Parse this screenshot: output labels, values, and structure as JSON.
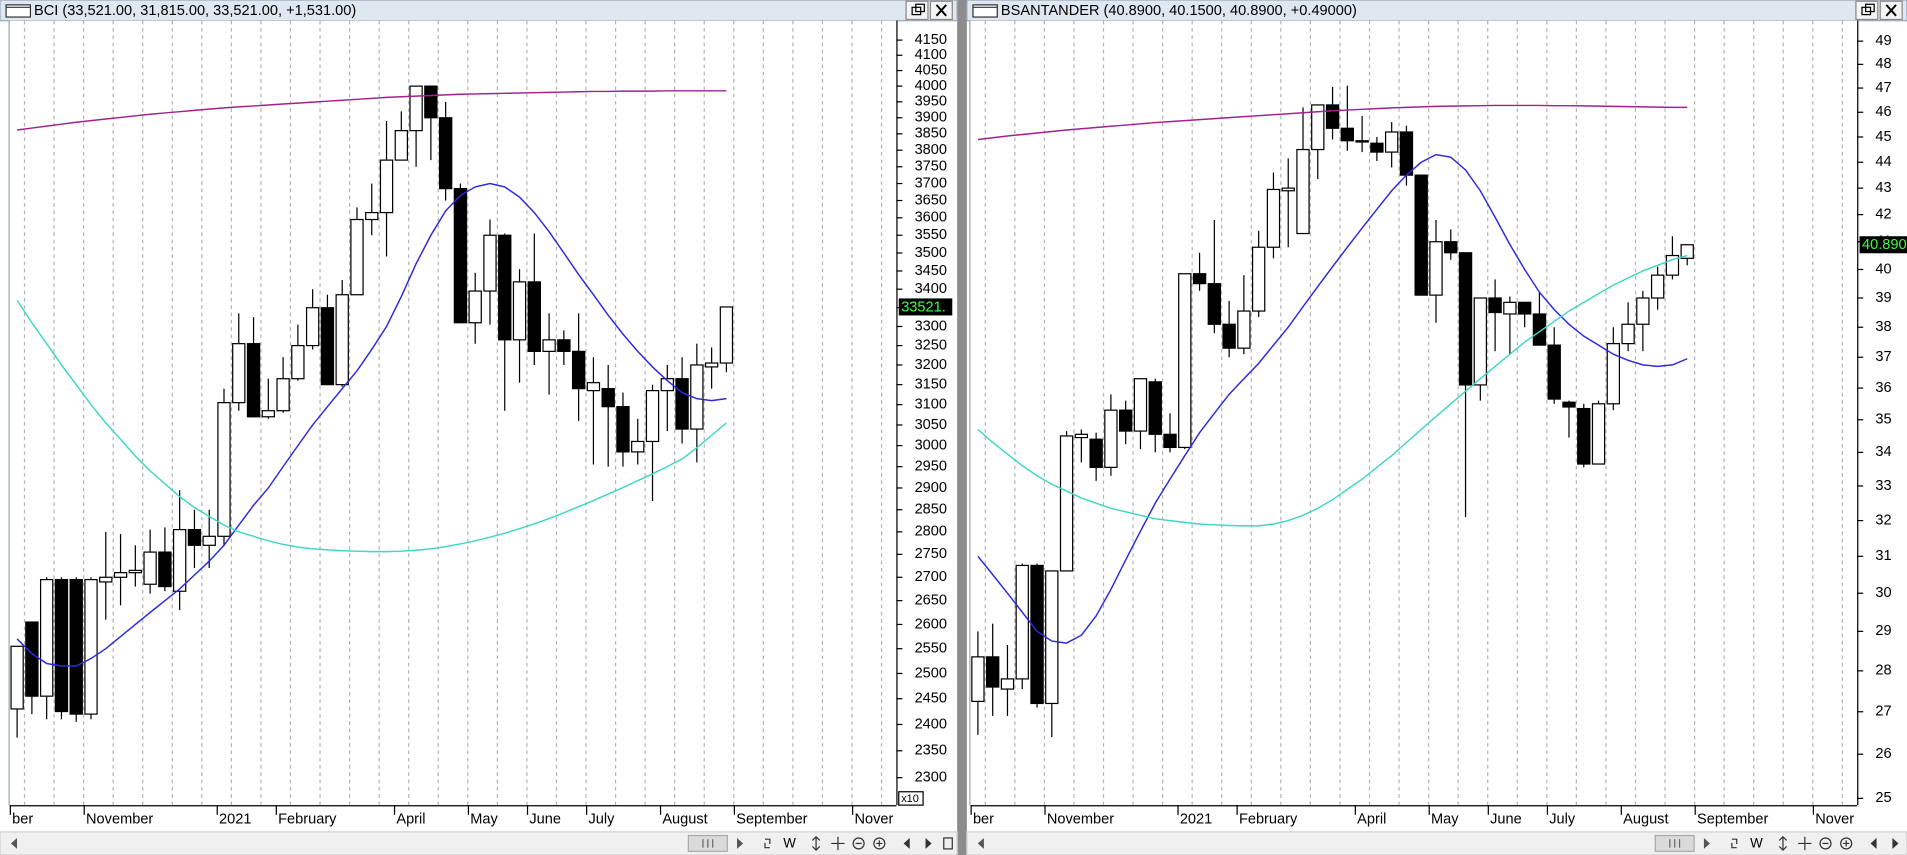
{
  "chart_data": [
    {
      "type": "candlestick",
      "title": "BCI (33,521.00, 31,815.00, 33,521.00, +1,531.00)",
      "log_scale": true,
      "grid": "x",
      "up_color": "#ffffff",
      "down_color": "#000000",
      "last_label": "33521.",
      "axis_multiplier": "x10",
      "toolbar_label": "W",
      "categories": [
        "ber",
        null,
        null,
        null,
        null,
        "November",
        null,
        null,
        null,
        null,
        null,
        null,
        null,
        null,
        "2021",
        null,
        null,
        null,
        "February",
        null,
        null,
        null,
        null,
        null,
        null,
        null,
        "April",
        null,
        null,
        null,
        null,
        "May",
        null,
        null,
        null,
        "June",
        null,
        null,
        null,
        "July",
        null,
        null,
        null,
        null,
        "August",
        null,
        null,
        null,
        null,
        "September",
        null,
        null,
        null,
        null,
        null,
        null,
        null,
        "Nover",
        null,
        null
      ],
      "open": [
        2430,
        2605,
        2455,
        2695,
        2695,
        2420,
        2690,
        2700,
        2710,
        2685,
        2755,
        2670,
        2805,
        2770,
        2790,
        3105,
        3255,
        3070,
        3085,
        3165,
        3250,
        3350,
        3150,
        3385,
        3595,
        3615,
        3770,
        3860,
        4000,
        3900,
        3685,
        3310,
        3395,
        3550,
        3265,
        3420,
        3235,
        3265,
        3235,
        3135,
        3140,
        3095,
        2985,
        3010,
        3135,
        3165,
        3040,
        3195,
        3205,
        null,
        null,
        null,
        null,
        null,
        null,
        null,
        null,
        null,
        null,
        null
      ],
      "high": [
        2555,
        2605,
        2700,
        2700,
        2700,
        2700,
        2800,
        2795,
        2770,
        2805,
        2810,
        2895,
        2850,
        2850,
        3140,
        3335,
        3325,
        3165,
        3220,
        3305,
        3400,
        3385,
        3425,
        3630,
        3700,
        3890,
        3920,
        4000,
        4000,
        3950,
        3700,
        3445,
        3595,
        3555,
        3455,
        3555,
        3335,
        3290,
        3335,
        3220,
        3200,
        3130,
        3065,
        3150,
        3200,
        3220,
        3255,
        3245,
        3352.1,
        null,
        null,
        null,
        null,
        null,
        null,
        null,
        null,
        null,
        null,
        null
      ],
      "low": [
        2375,
        2420,
        2410,
        2410,
        2405,
        2410,
        2610,
        2640,
        2680,
        2665,
        2670,
        2630,
        2720,
        2720,
        2770,
        3085,
        3075,
        3065,
        3080,
        3160,
        3240,
        3150,
        3145,
        3385,
        3550,
        3490,
        3770,
        3750,
        3770,
        3650,
        3310,
        3255,
        3305,
        3085,
        3155,
        3200,
        3125,
        3200,
        3060,
        2955,
        2950,
        2950,
        2955,
        2870,
        3035,
        3005,
        2960,
        3140,
        3181.5,
        null,
        null,
        null,
        null,
        null,
        null,
        null,
        null,
        null,
        null,
        null
      ],
      "close": [
        2555,
        2455,
        2695,
        2425,
        2420,
        2695,
        2700,
        2710,
        2715,
        2755,
        2680,
        2805,
        2770,
        2790,
        3105,
        3255,
        3070,
        3085,
        3165,
        3250,
        3350,
        3150,
        3385,
        3595,
        3615,
        3770,
        3860,
        4000,
        3900,
        3685,
        3310,
        3395,
        3550,
        3265,
        3420,
        3235,
        3265,
        3235,
        3140,
        3155,
        3095,
        2985,
        3010,
        3135,
        3165,
        3040,
        3200,
        3205,
        3352.1,
        null,
        null,
        null,
        null,
        null,
        null,
        null,
        null,
        null,
        null,
        null
      ],
      "overlays": [
        {
          "color": "#a3218f",
          "values": [
            3862,
            3868,
            3874,
            3880,
            3886,
            3891,
            3896,
            3901,
            3906,
            3911,
            3915,
            3919,
            3923,
            3927,
            3931,
            3934,
            3937,
            3940,
            3943,
            3946,
            3949,
            3952,
            3955,
            3958,
            3961,
            3964,
            3966,
            3968,
            3970,
            3972,
            3974,
            3975,
            3976,
            3977,
            3978,
            3979,
            3980,
            3981,
            3982,
            3983,
            3983,
            3984,
            3984,
            3984,
            3985,
            3985,
            3985,
            3985,
            3985,
            null,
            null,
            null,
            null,
            null,
            null,
            null,
            null,
            null,
            null,
            null
          ]
        },
        {
          "color": "#2a2ae0",
          "values": [
            2570,
            2540,
            2520,
            2515,
            2515,
            2530,
            2550,
            2575,
            2600,
            2625,
            2650,
            2675,
            2705,
            2735,
            2770,
            2815,
            2860,
            2900,
            2950,
            3000,
            3050,
            3095,
            3140,
            3185,
            3240,
            3300,
            3380,
            3470,
            3550,
            3620,
            3665,
            3690,
            3700,
            3690,
            3660,
            3615,
            3560,
            3500,
            3440,
            3385,
            3330,
            3280,
            3235,
            3195,
            3160,
            3130,
            3115,
            3110,
            3115,
            null,
            null,
            null,
            null,
            null,
            null,
            null,
            null,
            null,
            null,
            null
          ]
        },
        {
          "color": "#3fd6c6",
          "values": [
            3370,
            3310,
            3255,
            3200,
            3150,
            3100,
            3055,
            3015,
            2975,
            2940,
            2910,
            2880,
            2855,
            2835,
            2815,
            2800,
            2790,
            2780,
            2772,
            2766,
            2762,
            2760,
            2758,
            2757,
            2756,
            2756,
            2757,
            2759,
            2762,
            2767,
            2773,
            2780,
            2788,
            2797,
            2807,
            2818,
            2830,
            2843,
            2857,
            2871,
            2886,
            2901,
            2917,
            2933,
            2950,
            2968,
            2995,
            3025,
            3055,
            null,
            null,
            null,
            null,
            null,
            null,
            null,
            null,
            null,
            null,
            null
          ]
        }
      ],
      "ylim": [
        2250,
        4215
      ],
      "yticks": [
        2300,
        2350,
        2400,
        2450,
        2500,
        2550,
        2600,
        2650,
        2700,
        2750,
        2800,
        2850,
        2900,
        2950,
        3000,
        3050,
        3100,
        3150,
        3200,
        3250,
        3300,
        3350,
        3400,
        3450,
        3500,
        3550,
        3600,
        3650,
        3700,
        3750,
        3800,
        3850,
        3900,
        3950,
        4000,
        4050,
        4100,
        4150
      ]
    },
    {
      "type": "candlestick",
      "title": "BSANTANDER (40.8900, 40.1500, 40.8900, +0.49000)",
      "log_scale": true,
      "grid": "x",
      "up_color": "#ffffff",
      "down_color": "#000000",
      "last_label": "40.890",
      "toolbar_label": "W",
      "categories": [
        "ber",
        null,
        null,
        null,
        null,
        "November",
        null,
        null,
        null,
        null,
        null,
        null,
        null,
        null,
        "2021",
        null,
        null,
        null,
        "February",
        null,
        null,
        null,
        null,
        null,
        null,
        null,
        "April",
        null,
        null,
        null,
        null,
        "May",
        null,
        null,
        null,
        "June",
        null,
        null,
        null,
        "July",
        null,
        null,
        null,
        null,
        "August",
        null,
        null,
        null,
        null,
        "September",
        null,
        null,
        null,
        null,
        null,
        null,
        null,
        "Nover",
        null,
        null
      ],
      "open": [
        27.25,
        28.35,
        27.55,
        27.8,
        30.75,
        27.2,
        30.6,
        34.45,
        34.4,
        33.55,
        35.3,
        34.65,
        36.2,
        34.55,
        34.15,
        39.85,
        39.5,
        38.1,
        37.3,
        38.55,
        40.8,
        42.9,
        41.3,
        44.5,
        46.3,
        45.35,
        44.8,
        44.75,
        44.4,
        45.2,
        43.5,
        39.1,
        41.0,
        40.6,
        36.1,
        39.0,
        38.45,
        38.85,
        38.45,
        37.4,
        35.55,
        35.35,
        33.65,
        35.5,
        37.45,
        38.1,
        39.0,
        39.8,
        40.4,
        null,
        null,
        null,
        null,
        null,
        null,
        null,
        null,
        null,
        null,
        null
      ],
      "high": [
        29.0,
        29.2,
        28.65,
        30.8,
        30.8,
        30.6,
        34.65,
        34.7,
        34.6,
        35.8,
        35.6,
        36.3,
        36.3,
        35.2,
        39.85,
        40.6,
        41.8,
        38.9,
        39.8,
        41.4,
        43.6,
        44.15,
        46.2,
        46.3,
        47.05,
        47.1,
        45.85,
        45.0,
        45.6,
        45.45,
        43.5,
        41.8,
        41.45,
        40.6,
        39.0,
        39.65,
        39.05,
        38.85,
        39.2,
        38.0,
        35.6,
        35.5,
        35.6,
        38.0,
        38.85,
        39.25,
        40.1,
        41.2,
        40.89,
        null,
        null,
        null,
        null,
        null,
        null,
        null,
        null,
        null,
        null,
        null
      ],
      "low": [
        26.45,
        26.9,
        26.9,
        27.55,
        27.1,
        26.4,
        30.6,
        33.7,
        33.15,
        33.3,
        34.25,
        34.1,
        34.0,
        34.0,
        34.1,
        39.25,
        37.8,
        37.0,
        37.1,
        38.35,
        40.4,
        40.8,
        41.3,
        43.35,
        44.9,
        44.45,
        44.4,
        44.05,
        43.8,
        43.1,
        39.1,
        38.15,
        40.35,
        32.1,
        35.6,
        37.2,
        37.1,
        38.0,
        37.4,
        35.5,
        34.45,
        33.55,
        33.65,
        35.3,
        37.2,
        37.2,
        38.6,
        39.65,
        40.15,
        null,
        null,
        null,
        null,
        null,
        null,
        null,
        null,
        null,
        null,
        null
      ],
      "close": [
        28.35,
        27.6,
        27.8,
        30.75,
        27.2,
        30.6,
        34.5,
        34.55,
        33.55,
        35.3,
        34.65,
        36.3,
        34.55,
        34.15,
        39.85,
        39.5,
        38.1,
        37.3,
        38.55,
        40.8,
        42.95,
        43.0,
        44.5,
        46.3,
        45.35,
        44.85,
        44.85,
        44.4,
        45.2,
        43.5,
        39.1,
        41.0,
        40.6,
        36.1,
        39.0,
        38.5,
        38.85,
        38.45,
        37.4,
        35.65,
        35.4,
        33.65,
        35.5,
        37.45,
        38.1,
        39.0,
        39.8,
        40.5,
        40.89,
        null,
        null,
        null,
        null,
        null,
        null,
        null,
        null,
        null,
        null,
        null
      ],
      "overlays": [
        {
          "color": "#a3218f",
          "values": [
            44.9,
            44.97,
            45.04,
            45.1,
            45.16,
            45.22,
            45.28,
            45.33,
            45.38,
            45.43,
            45.48,
            45.53,
            45.58,
            45.62,
            45.66,
            45.7,
            45.74,
            45.78,
            45.82,
            45.86,
            45.9,
            45.94,
            45.98,
            46.02,
            46.06,
            46.09,
            46.12,
            46.15,
            46.18,
            46.2,
            46.22,
            46.24,
            46.25,
            46.26,
            46.27,
            46.28,
            46.28,
            46.28,
            46.28,
            46.27,
            46.27,
            46.26,
            46.25,
            46.24,
            46.23,
            46.22,
            46.21,
            46.2,
            46.2,
            null,
            null,
            null,
            null,
            null,
            null,
            null,
            null,
            null,
            null,
            null
          ]
        },
        {
          "color": "#2a2ae0",
          "values": [
            31.0,
            30.5,
            30.0,
            29.5,
            29.0,
            28.75,
            28.7,
            28.9,
            29.4,
            30.1,
            30.9,
            31.7,
            32.5,
            33.2,
            33.9,
            34.6,
            35.2,
            35.8,
            36.3,
            36.8,
            37.4,
            38.0,
            38.7,
            39.4,
            40.1,
            40.8,
            41.5,
            42.2,
            42.9,
            43.5,
            44.0,
            44.3,
            44.2,
            43.7,
            42.9,
            41.9,
            40.9,
            40.0,
            39.2,
            38.6,
            38.1,
            37.7,
            37.4,
            37.1,
            36.9,
            36.75,
            36.7,
            36.75,
            36.95,
            null,
            null,
            null,
            null,
            null,
            null,
            null,
            null,
            null,
            null,
            null
          ]
        },
        {
          "color": "#3fd6c6",
          "values": [
            34.7,
            34.3,
            33.95,
            33.6,
            33.3,
            33.05,
            32.85,
            32.65,
            32.5,
            32.35,
            32.25,
            32.15,
            32.05,
            32.0,
            31.95,
            31.9,
            31.88,
            31.86,
            31.85,
            31.85,
            31.9,
            32.0,
            32.15,
            32.35,
            32.6,
            32.9,
            33.2,
            33.55,
            33.9,
            34.3,
            34.7,
            35.1,
            35.5,
            35.9,
            36.3,
            36.7,
            37.1,
            37.5,
            37.85,
            38.2,
            38.55,
            38.85,
            39.15,
            39.45,
            39.7,
            39.95,
            40.15,
            40.35,
            40.5,
            null,
            null,
            null,
            null,
            null,
            null,
            null,
            null,
            null,
            null,
            null
          ]
        }
      ],
      "ylim": [
        24.85,
        49.9
      ],
      "yticks": [
        25,
        26,
        27,
        28,
        29,
        30,
        31,
        32,
        33,
        34,
        35,
        36,
        37,
        38,
        39,
        40,
        41,
        42,
        43,
        44,
        45,
        46,
        47,
        48,
        49
      ]
    }
  ]
}
